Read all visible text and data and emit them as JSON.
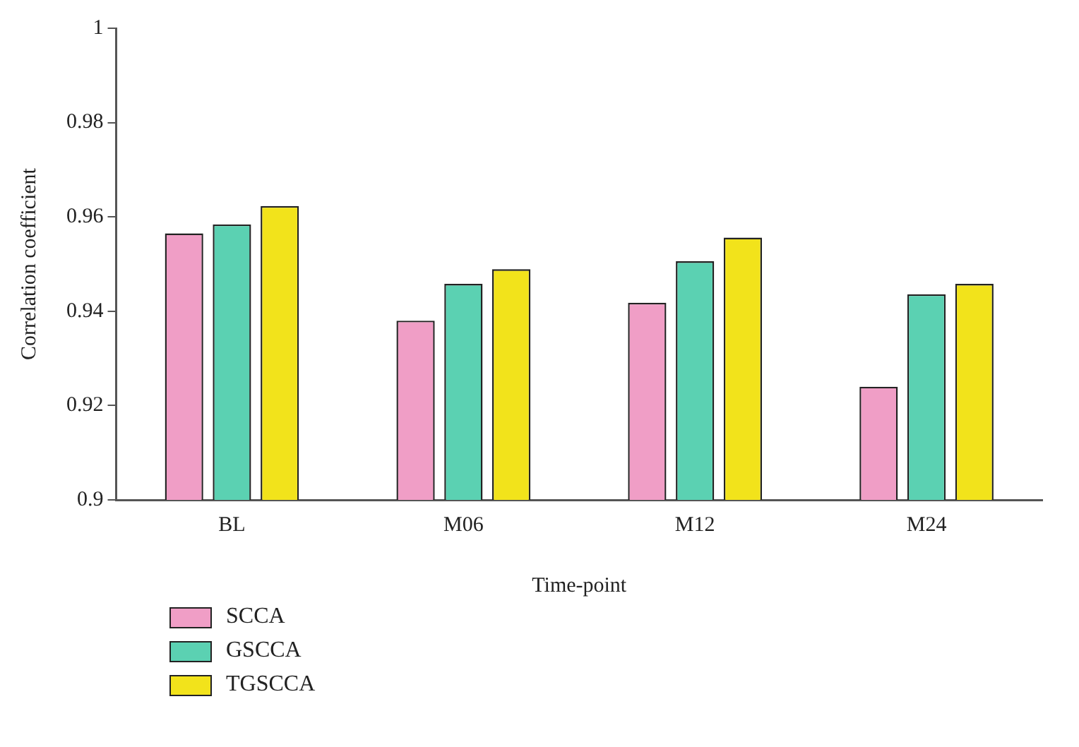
{
  "chart_data": {
    "type": "bar",
    "xlabel": "Time-point",
    "ylabel": "Correlation coefficient",
    "categories": [
      "BL",
      "M06",
      "M12",
      "M24"
    ],
    "series": [
      {
        "name": "SCCA",
        "color": "#f09ec6",
        "values": [
          0.9565,
          0.938,
          0.9418,
          0.924
        ]
      },
      {
        "name": "GSCCA",
        "color": "#5bd1b2",
        "values": [
          0.9584,
          0.9458,
          0.9506,
          0.9436
        ]
      },
      {
        "name": "TGSCCA",
        "color": "#f2e31b",
        "values": [
          0.9623,
          0.9489,
          0.9556,
          0.9458
        ]
      }
    ],
    "ylim": [
      0.9,
      1
    ],
    "yticks": [
      0.9,
      0.92,
      0.94,
      0.96,
      0.98,
      1
    ],
    "grid": false,
    "legend": "bottom left"
  }
}
